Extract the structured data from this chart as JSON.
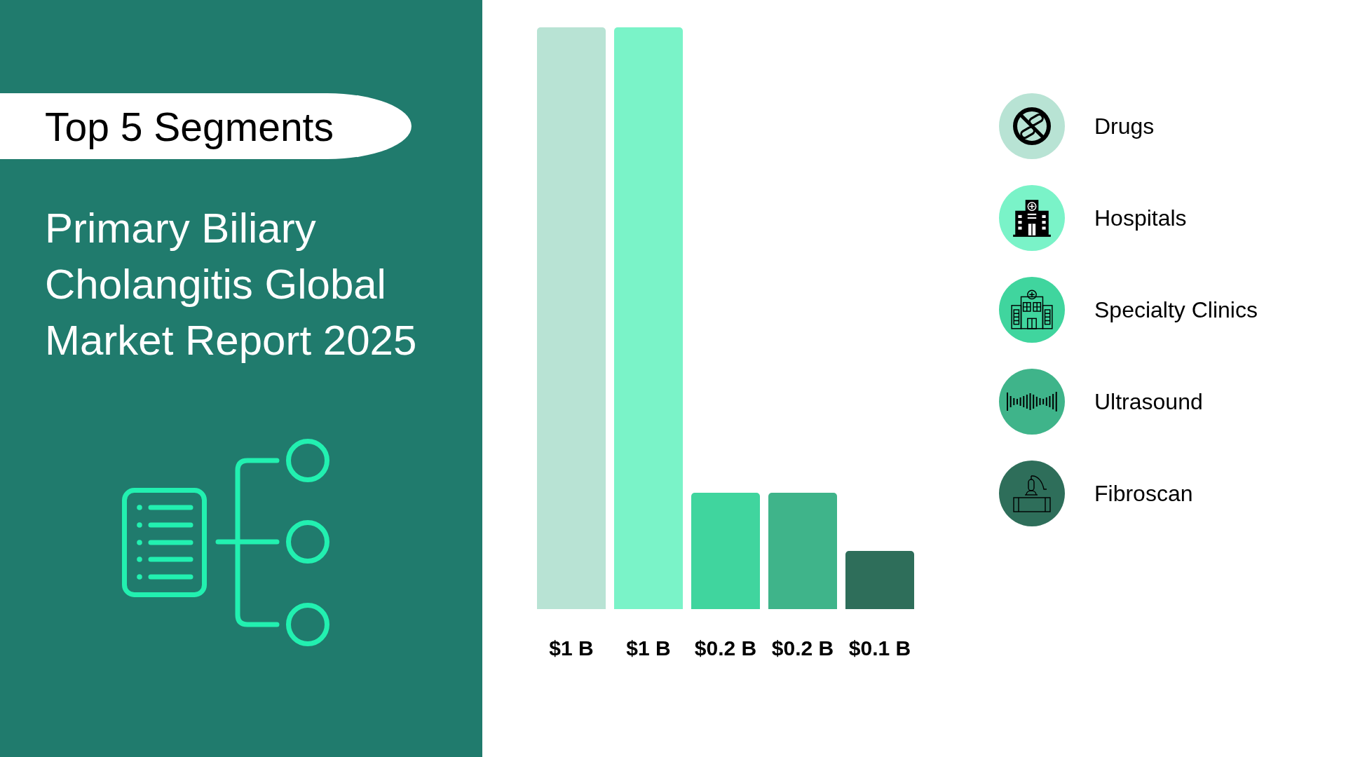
{
  "chart_data": {
    "type": "bar",
    "title": "Top 5 Segments",
    "subtitle": "Primary Biliary Cholangitis Global Market Report 2025",
    "categories": [
      null,
      null,
      null,
      null,
      null
    ],
    "stacked": true,
    "series": [
      {
        "name": "Drugs",
        "color": "#b8e3d4",
        "values": [
          1,
          null,
          null,
          null,
          null
        ],
        "value_labels": [
          "$1 B",
          null,
          null,
          null,
          null
        ]
      },
      {
        "name": "Hospitals",
        "color": "#7af3c8",
        "values": [
          null,
          1,
          null,
          null,
          null
        ],
        "value_labels": [
          null,
          "$1 B",
          null,
          null,
          null
        ]
      },
      {
        "name": "Specialty Clinics",
        "color": "#40d59e",
        "values": [
          null,
          null,
          0.2,
          null,
          null
        ],
        "value_labels": [
          null,
          null,
          "$0.2 B",
          null,
          null
        ]
      },
      {
        "name": "Ultrasound",
        "color": "#3fb48a",
        "values": [
          null,
          null,
          null,
          0.2,
          null
        ],
        "value_labels": [
          null,
          null,
          null,
          "$0.2 B",
          null
        ]
      },
      {
        "name": "Fibroscan",
        "color": "#2e6e5a",
        "values": [
          null,
          null,
          null,
          null,
          0.1
        ],
        "value_labels": [
          null,
          null,
          null,
          null,
          "$0.1 B"
        ]
      }
    ],
    "legend": "right",
    "grid": false,
    "tick_labels": false
  }
}
